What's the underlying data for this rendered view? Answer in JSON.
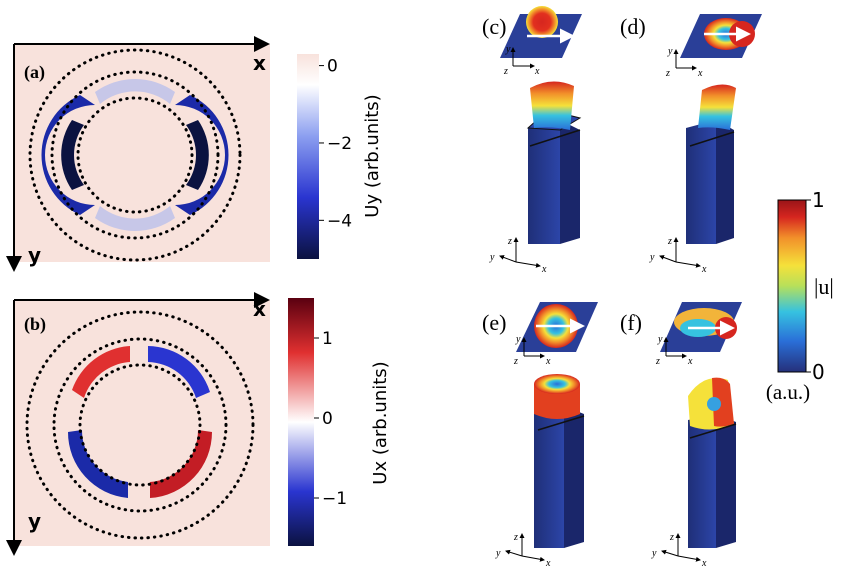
{
  "panels": {
    "a": {
      "label": "(a)",
      "x_axis": "x",
      "y_axis": "y"
    },
    "b": {
      "label": "(b)",
      "x_axis": "x",
      "y_axis": "y"
    },
    "c": {
      "label": "(c)"
    },
    "d": {
      "label": "(d)"
    },
    "e": {
      "label": "(e)"
    },
    "f": {
      "label": "(f)"
    }
  },
  "colorbars": {
    "uy": {
      "title": "Uy (arb.units)",
      "ticks": [
        "0",
        "−2",
        "−4"
      ],
      "tick_values": [
        0,
        -2,
        -4
      ],
      "range": [
        -5,
        0.3
      ],
      "colors": [
        "#0b1240",
        "#2a35d0",
        "#8c9ff0",
        "#ffffff",
        "#f8e2dc"
      ]
    },
    "ux": {
      "title": "Ux (arb.units)",
      "ticks": [
        "1",
        "0",
        "−1"
      ],
      "tick_values": [
        1,
        0,
        -1
      ],
      "range": [
        -1.6,
        1.5
      ],
      "colors": [
        "#0b1240",
        "#2a35d0",
        "#ffffff",
        "#e03030",
        "#5a0010"
      ]
    },
    "u": {
      "title": "|u|",
      "unit": "(a.u.)",
      "ticks": [
        "1",
        "0"
      ],
      "tick_values": [
        1,
        0
      ],
      "range": [
        0,
        1
      ],
      "colors": [
        "#25307a",
        "#2a6fd8",
        "#36c2e0",
        "#b7e05a",
        "#f5e13a",
        "#f2902a",
        "#d6261f",
        "#9a1418"
      ]
    }
  },
  "axis_triads": {
    "x": "x",
    "y": "y",
    "z": "z"
  },
  "accent_colors": {
    "map_background": "#f8e2dc",
    "beam": "#2a3f98",
    "ring_dots": "#000000"
  }
}
